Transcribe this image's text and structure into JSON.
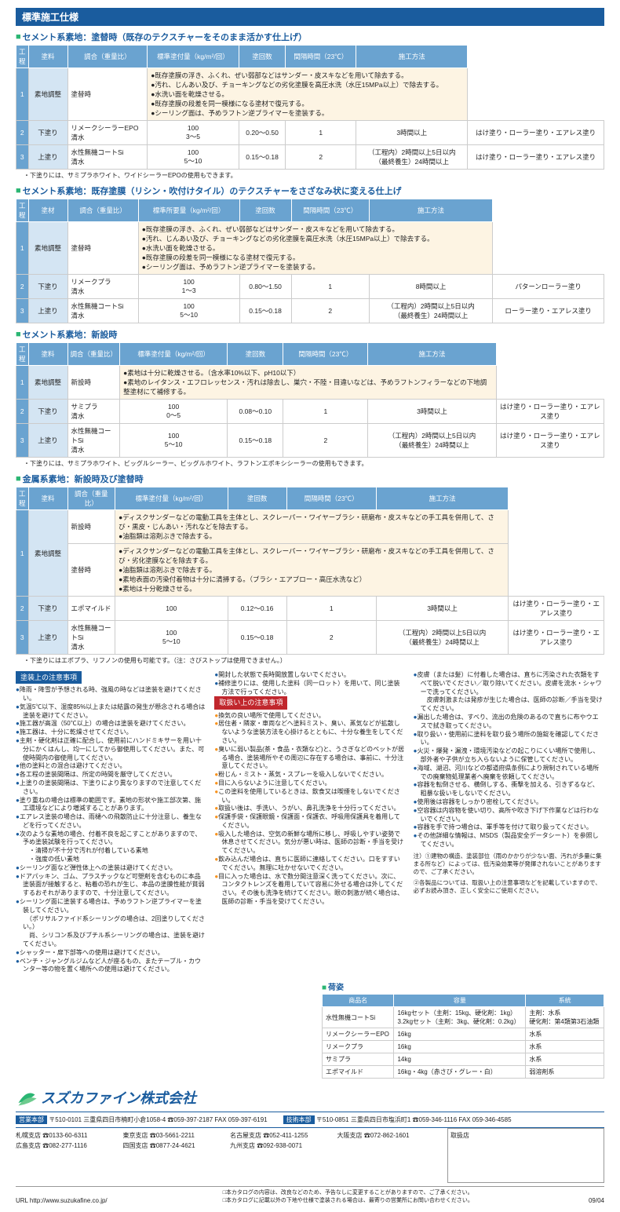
{
  "header": "標準施工仕様",
  "section1": {
    "title": "セメント系素地：塗替時（既存のテクスチャーをそのまま活かす仕上げ）",
    "headers": [
      "工程",
      "塗料",
      "調合（重量比）",
      "標準塗付量（kg/m²/回）",
      "塗回数",
      "間隔時間（23℃）",
      "施工方法"
    ],
    "row1": {
      "num": "1",
      "step": "素地調整",
      "mat": "塗替時",
      "notes": [
        "既存塗膜の浮き、ふくれ、ぜい弱部などはサンダー・皮スキなどを用いて除去する。",
        "汚れ、じんあい及び、チョーキングなどの劣化塗膜を高圧水洗（水圧15MPa以上）で除去する。",
        "水洗い面を乾燥させる。",
        "既存塗膜の段差を同一模様になる塗材で復元する。",
        "シーリング面は、予めラフトン逆プライマーを塗装する。"
      ]
    },
    "row2": {
      "num": "2",
      "step": "下塗り",
      "mat": "リメークシーラーEPO\n清水",
      "mix": "100\n3～5",
      "amt": "0.20～0.50",
      "cnt": "1",
      "time": "3時間以上",
      "method": "はけ塗り・ローラー塗り・エアレス塗り"
    },
    "row3": {
      "num": "3",
      "step": "上塗り",
      "mat": "水性無機コートSi\n清水",
      "mix": "100\n5～10",
      "amt": "0.15～0.18",
      "cnt": "2",
      "time": "（工程内）2時間以上5日以内\n（最終養生）24時間以上",
      "method": "はけ塗り・ローラー塗り・エアレス塗り"
    },
    "note": "・下塗りには、サミプラホワイト、ワイドシーラーEPOの使用もできます。"
  },
  "section2": {
    "title": "セメント系素地：既存塗膜（リシン・吹付けタイル）のテクスチャーをさざなみ状に変える仕上げ",
    "headers": [
      "工程",
      "塗材",
      "調合（重量比）",
      "標準所要量（kg/m²/回）",
      "塗回数",
      "間隔時間（23℃）",
      "施工方法"
    ],
    "row1": {
      "num": "1",
      "step": "素地調整",
      "mat": "塗替時",
      "notes": [
        "既存塗膜の浮き、ふくれ、ぜい弱部などはサンダー・皮スキなどを用いて除去する。",
        "汚れ、じんあい及び、チョーキングなどの劣化塗膜を高圧水洗（水圧15MPa以上）で除去する。",
        "水洗い面を乾燥させる。",
        "既存塗膜の段差を同一模様になる塗材で復元する。",
        "シーリング面は、予めラフトン逆プライマーを塗装する。"
      ]
    },
    "row2": {
      "num": "2",
      "step": "下塗り",
      "mat": "リメークプラ\n清水",
      "mix": "100\n1～3",
      "amt": "0.80～1.50",
      "cnt": "1",
      "time": "8時間以上",
      "method": "パターンローラー塗り"
    },
    "row3": {
      "num": "3",
      "step": "上塗り",
      "mat": "水性無機コートSi\n清水",
      "mix": "100\n5～10",
      "amt": "0.15～0.18",
      "cnt": "2",
      "time": "（工程内）2時間以上5日以内\n（最終養生）24時間以上",
      "method": "ローラー塗り・エアレス塗り"
    }
  },
  "section3": {
    "title": "セメント系素地：新設時",
    "headers": [
      "工程",
      "塗料",
      "調合（重量比）",
      "標準塗付量（kg/m²/回）",
      "塗回数",
      "間隔時間（23℃）",
      "施工方法"
    ],
    "row1": {
      "num": "1",
      "step": "素地調整",
      "mat": "新設時",
      "notes": [
        "素地は十分に乾燥させる。（含水率10%以下、pH10以下）",
        "素地のレイタンス・エフロレッセンス・汚れは除去し、巣穴・不陸・目違いなどは、予めラフトンフィラーなどの下地調整塗材にて補修する。"
      ]
    },
    "row2": {
      "num": "2",
      "step": "下塗り",
      "mat": "サミプラ\n清水",
      "mix": "100\n0～5",
      "amt": "0.08～0.10",
      "cnt": "1",
      "time": "3時間以上",
      "method": "はけ塗り・ローラー塗り・エアレス塗り"
    },
    "row3": {
      "num": "3",
      "step": "上塗り",
      "mat": "水性無機コートSi\n清水",
      "mix": "100\n5～10",
      "amt": "0.15～0.18",
      "cnt": "2",
      "time": "（工程内）2時間以上5日以内\n（最終養生）24時間以上",
      "method": "はけ塗り・ローラー塗り・エアレス塗り"
    },
    "note": "・下塗りには、サミプラホワイト、ビッグルシーラー、ビッグルホワイト、ラフトンエポキシシーラーの使用もできます。"
  },
  "section4": {
    "title": "金属系素地：新設時及び塗替時",
    "headers": [
      "工程",
      "塗料",
      "調合（重量比）",
      "標準塗付量（kg/m²/回）",
      "塗回数",
      "間隔時間（23℃）",
      "施工方法"
    ],
    "row1a": {
      "num_rowspan": 2,
      "num": "1",
      "step": "素地調整",
      "mat": "新設時",
      "notes": [
        "ディスクサンダーなどの電動工具を主体とし、スクレーパー・ワイヤーブラシ・研磨布・皮スキなどの手工具を併用して、さび・黒皮・じんあい・汚れなどを除去する。",
        "油脂類は溶剤ぶきで除去する。"
      ]
    },
    "row1b": {
      "mat": "塗替時",
      "notes": [
        "ディスクサンダーなどの電動工具を主体とし、スクレーパー・ワイヤーブラシ・研磨布・皮スキなどの手工具を併用して、さび・劣化塗膜などを除去する。",
        "油脂類は溶剤ぶきで除去する。",
        "素地表面の汚染付着物は十分に清掃する。（ブラシ・エアブロー・高圧水洗など）",
        "素地は十分乾燥させる。"
      ]
    },
    "row2": {
      "num": "2",
      "step": "下塗り",
      "mat": "エポマイルド",
      "mix": "100",
      "amt": "0.12～0.16",
      "cnt": "1",
      "time": "3時間以上",
      "method": "はけ塗り・ローラー塗り・エアレス塗り"
    },
    "row3": {
      "num": "3",
      "step": "上塗り",
      "mat": "水性無機コートSi\n清水",
      "mix": "100\n5～10",
      "amt": "0.15～0.18",
      "cnt": "2",
      "time": "（工程内）2時間以上5日以内\n（最終養生）24時間以上",
      "method": "はけ塗り・ローラー塗り・エアレス塗り"
    },
    "note": "・下塗りにはエポプラ、リフノンの使用も可能です。（注：さびストップは使用できません。）"
  },
  "leftbox_title": "塗装上の注意事項",
  "left_items": [
    "降雨・降雪が予想される時、強風の時などは塗装を避けてください。",
    "気温5℃以下、湿度85%以上または結露の発生が懸念される場合は塗装を避けてください。",
    "施工器が高温（50℃以上）の場合は塗装を避けてください。",
    "施工器は、十分に乾燥させてください。",
    "主剤・硬化剤は正確に配合し、使用前にハンドミキサーを用い十分にかくはんし、均一にしてから御使用してください。また、可使時間内の御使用してください。",
    "他の塗料との混合は避けてください。",
    "各工程の塗装間隔は、所定の時間を厳守してください。",
    "上塗りの塗装間隔は、下塗りにより異なりますので注意してください。",
    "塗り重ねの場合は標準の範囲です。素地の形状や施工部次第、施工環境などにより増減することがあります。",
    "エアレス塗装の場合は、雨樋への飛散防止に十分注意し、養生などを行ってください。",
    "次のような素地の場合、付着不良を起こすことがありますので、予め塗装試験を行ってください。\n・清掃が不十分で汚れが付着している素地\n・強度の低い素地",
    "シーリング面など弾性体上への塗装は避けてください。",
    "ドアパッキン、ゴム、プラスチックなど可塑剤を含むものに本品塗装面が接触すると、粘着の恐れが生じ、本品の塗膜性能が貧弱するおそれがありますので、十分注意してください。",
    "シーリング面に塗装する場合は、予めラフトン逆プライマーを塗装してください。\n（ポリサルファイド系シーリングの場合は、2回塗りしてください。）\n尚、シリコン系及びブチル系シーリングの場合は、塗装を避けてください。",
    "シャッター・扉下部等への使用は避けてください。",
    "ベンチ・ジャングルジムなど人が座るもの、またテーブル・カウンター等の物を置く場所への使用は避けてください。"
  ],
  "mid_items_top": [
    "開封した状態で長時間放置しないでください。",
    "補修塗りには、使用した塗料（同一ロット）を用いて、同じ塗装方法で行ってください。"
  ],
  "midbox_title": "取扱い上の注意事項",
  "mid_items": [
    "換気の良い場所で使用してください。",
    "居住者・隣家・車両などへ塗料ミスト、臭い、蒸気などが拡散しないような塗装方法を心掛けるとともに、十分な養生をしてください。",
    "臭いに弱い製品(茶・食品・衣類など)と、うさぎなどのペットが居る場合、塗装場所やその周辺に存在する場合は、事前に、十分注意してください。",
    "粉じん・ミスト・蒸気・スプレーを吸入しないでください。",
    "目に入らないように注意してください。",
    "この塗料を使用しているときは、飲食又は喫煙をしないでください。",
    "取扱い後は、手洗い、うがい、鼻孔洗浄を十分行ってください。",
    "保護手袋・保護眼鏡・保護面・保護衣、呼吸用保護具を着用してください。",
    "吸入した場合は、空気の新鮮な場所に移し、呼吸しやすい姿勢で休息させてください。気分が悪い時は、医師の診断・手当を受けてください。",
    "飲み込んだ場合は、直ちに医師に連絡してください。口をすすいでください。無理に吐かせないでください。",
    "目に入った場合は、水で数分間注意深く洗ってください。次に、コンタクトレンズを着用していて容易に外せる場合は外してください。その後も洗浄を続けてください。眼の刺激が続く場合は、医師の診断・手当を受けてください。"
  ],
  "right_items": [
    "皮膚（または髪）に付着した場合は、直ちに汚染された衣類をすべて脱いでください／取り除いてください。皮膚を流水・シャワーで洗ってください。\n皮膚刺激または発疹が生じた場合は、医師の診断／手当を受けてください。",
    "漏出した場合は、すべり、流出の危険のあるので直ちに布やウエスで拭き取ってください。",
    "取り扱い・使用前に塗料を取り扱う場所の施錠を確認してください。",
    "火災・爆発・漏洩・環境汚染などの起こりにくい場所で使用し、部外者や子供が立ち入らないように保管してください。",
    "海域、湖沼、河川などの都道府県条例により規制されている場所での廃棄物処理業者へ廃棄を依頼してください。",
    "容器を転倒させる、横倒しする、衝撃を加える、引きずるなど、粗暴な扱いをしないでください。",
    "使用後は容器をしっかり密栓してください。",
    "空容器は内容物を使い切り、高所や吹き下げ下作業などは行わないでください。",
    "容器を手で持つ場合は、軍手等を付けて取り扱ってください。",
    "その他詳細な情報は、MSDS（製品安全データシート）を参照してください。"
  ],
  "ann": {
    "n1": "注）①建物の構造、塗装部位（雨のかかりが少ない面、汚れが多量に集まる所など）によっては、低汚染効果等が発揮されないことがありますので、ご了承ください。",
    "n2": "②各製品については、取扱い上の注意事項などを記載していますので、必ずお読み頂き、正しく安全にご使用ください。"
  },
  "pack_title": "荷姿",
  "pack_headers": [
    "商品名",
    "容量",
    "系統"
  ],
  "pack_rows": [
    [
      "水性無機コートSi",
      "16kgセット（主剤：15kg、硬化剤：1kg）\n3.2kgセット（主剤：3kg、硬化剤：0.2kg）",
      "主剤：水系\n硬化剤：第4類第3石油類"
    ],
    [
      "リメークシーラーEPO",
      "16kg",
      "水系"
    ],
    [
      "リメークプラ",
      "16kg",
      "水系"
    ],
    [
      "サミプラ",
      "14kg",
      "水系"
    ],
    [
      "エポマイルド",
      "16kg・4kg（赤さび・グレー・白）",
      "弱溶剤系"
    ]
  ],
  "company": {
    "name": "スズカファイン株式会社",
    "hq": [
      {
        "label": "営業本部",
        "zip": "〒510-0101",
        "addr": "三重県四日市楠町小倉1058-4",
        "tel": "☎059-397-2187",
        "fax": "FAX 059-397-6191"
      },
      {
        "label": "技術本部",
        "zip": "〒510-0851",
        "addr": "三重県四日市塩浜町1",
        "tel": "☎059-346-1116",
        "fax": "FAX 059-346-4585"
      }
    ],
    "branches": [
      {
        "n": "札幌支店",
        "t": "☎0133-60-6311"
      },
      {
        "n": "東京支店",
        "t": "☎03-5661-2211"
      },
      {
        "n": "名古屋支店",
        "t": "☎052-411-1255"
      },
      {
        "n": "大阪支店",
        "t": "☎072-862-1601"
      },
      {
        "n": "広島支店",
        "t": "☎082-277-1116"
      },
      {
        "n": "四国支店",
        "t": "☎0877-24-4621"
      },
      {
        "n": "九州支店",
        "t": "☎092-938-0071"
      }
    ]
  },
  "dealer": "取扱店",
  "url": "URL http://www.suzukafine.co.jp/",
  "footer_notes": [
    "□本カタログの内容は、改良などのため、予告なしに変更することがありますので、ご了承ください。",
    "□本カタログに記載以外の下地や仕様で塗装される場合は、最寄りの営業所にお問い合わせください。"
  ],
  "date": "09/04"
}
